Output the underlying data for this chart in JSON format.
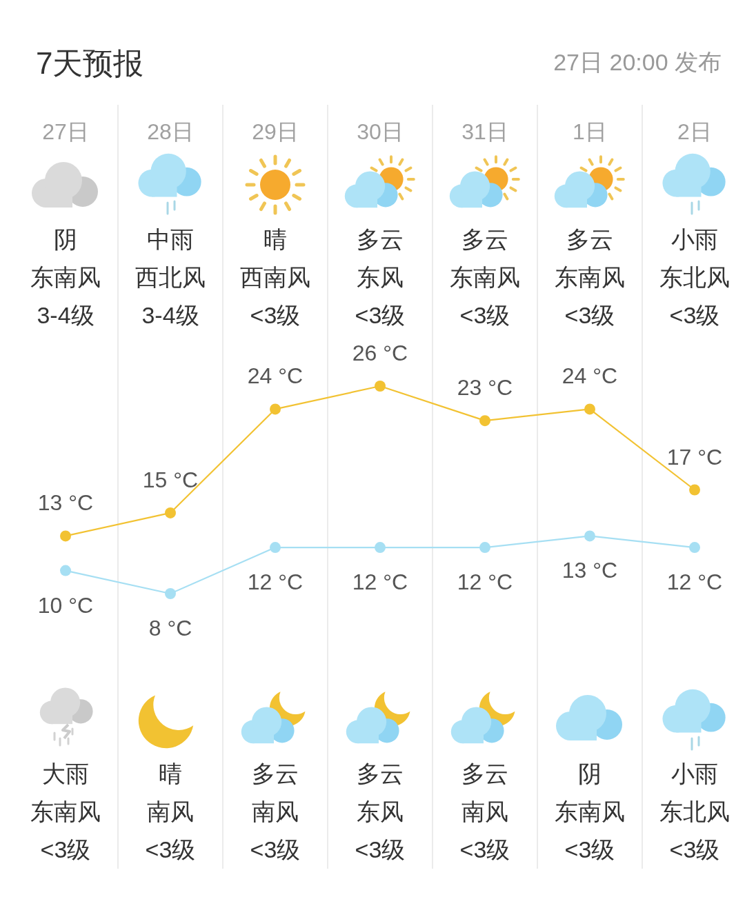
{
  "chart_data": {
    "type": "line",
    "title": "7天预报",
    "subtitle": "27日 20:00 发布",
    "categories": [
      "27日",
      "28日",
      "29日",
      "30日",
      "31日",
      "1日",
      "2日"
    ],
    "series": [
      {
        "color": "#f2c232",
        "values": [
          13,
          15,
          24,
          26,
          23,
          24,
          17
        ],
        "value_labels": [
          "13 °C",
          "15 °C",
          "24 °C",
          "26 °C",
          "23 °C",
          "24 °C",
          "17 °C"
        ]
      },
      {
        "color": "#a6dff3",
        "values": [
          10,
          8,
          12,
          12,
          12,
          13,
          12
        ],
        "value_labels": [
          "10 °C",
          "8 °C",
          "12 °C",
          "12 °C",
          "12 °C",
          "13 °C",
          "12 °C"
        ]
      }
    ],
    "annotations": [
      "阴",
      "东南风",
      "3-4级",
      "大雨",
      "东南风",
      "<3级",
      "中雨",
      "西北风",
      "3-4级",
      "晴",
      "南风",
      "<3级",
      "晴",
      "西南风",
      "<3级",
      "多云",
      "南风",
      "<3级",
      "多云",
      "东风",
      "<3级",
      "多云",
      "东风",
      "<3级",
      "多云",
      "东南风",
      "<3级",
      "多云",
      "南风",
      "<3级",
      "多云",
      "东南风",
      "<3级",
      "阴",
      "东南风",
      "<3级",
      "小雨",
      "东北风",
      "<3级",
      "小雨",
      "东北风",
      "<3级"
    ],
    "marker": "circle",
    "line_style": "solid",
    "grid": "x"
  }
}
